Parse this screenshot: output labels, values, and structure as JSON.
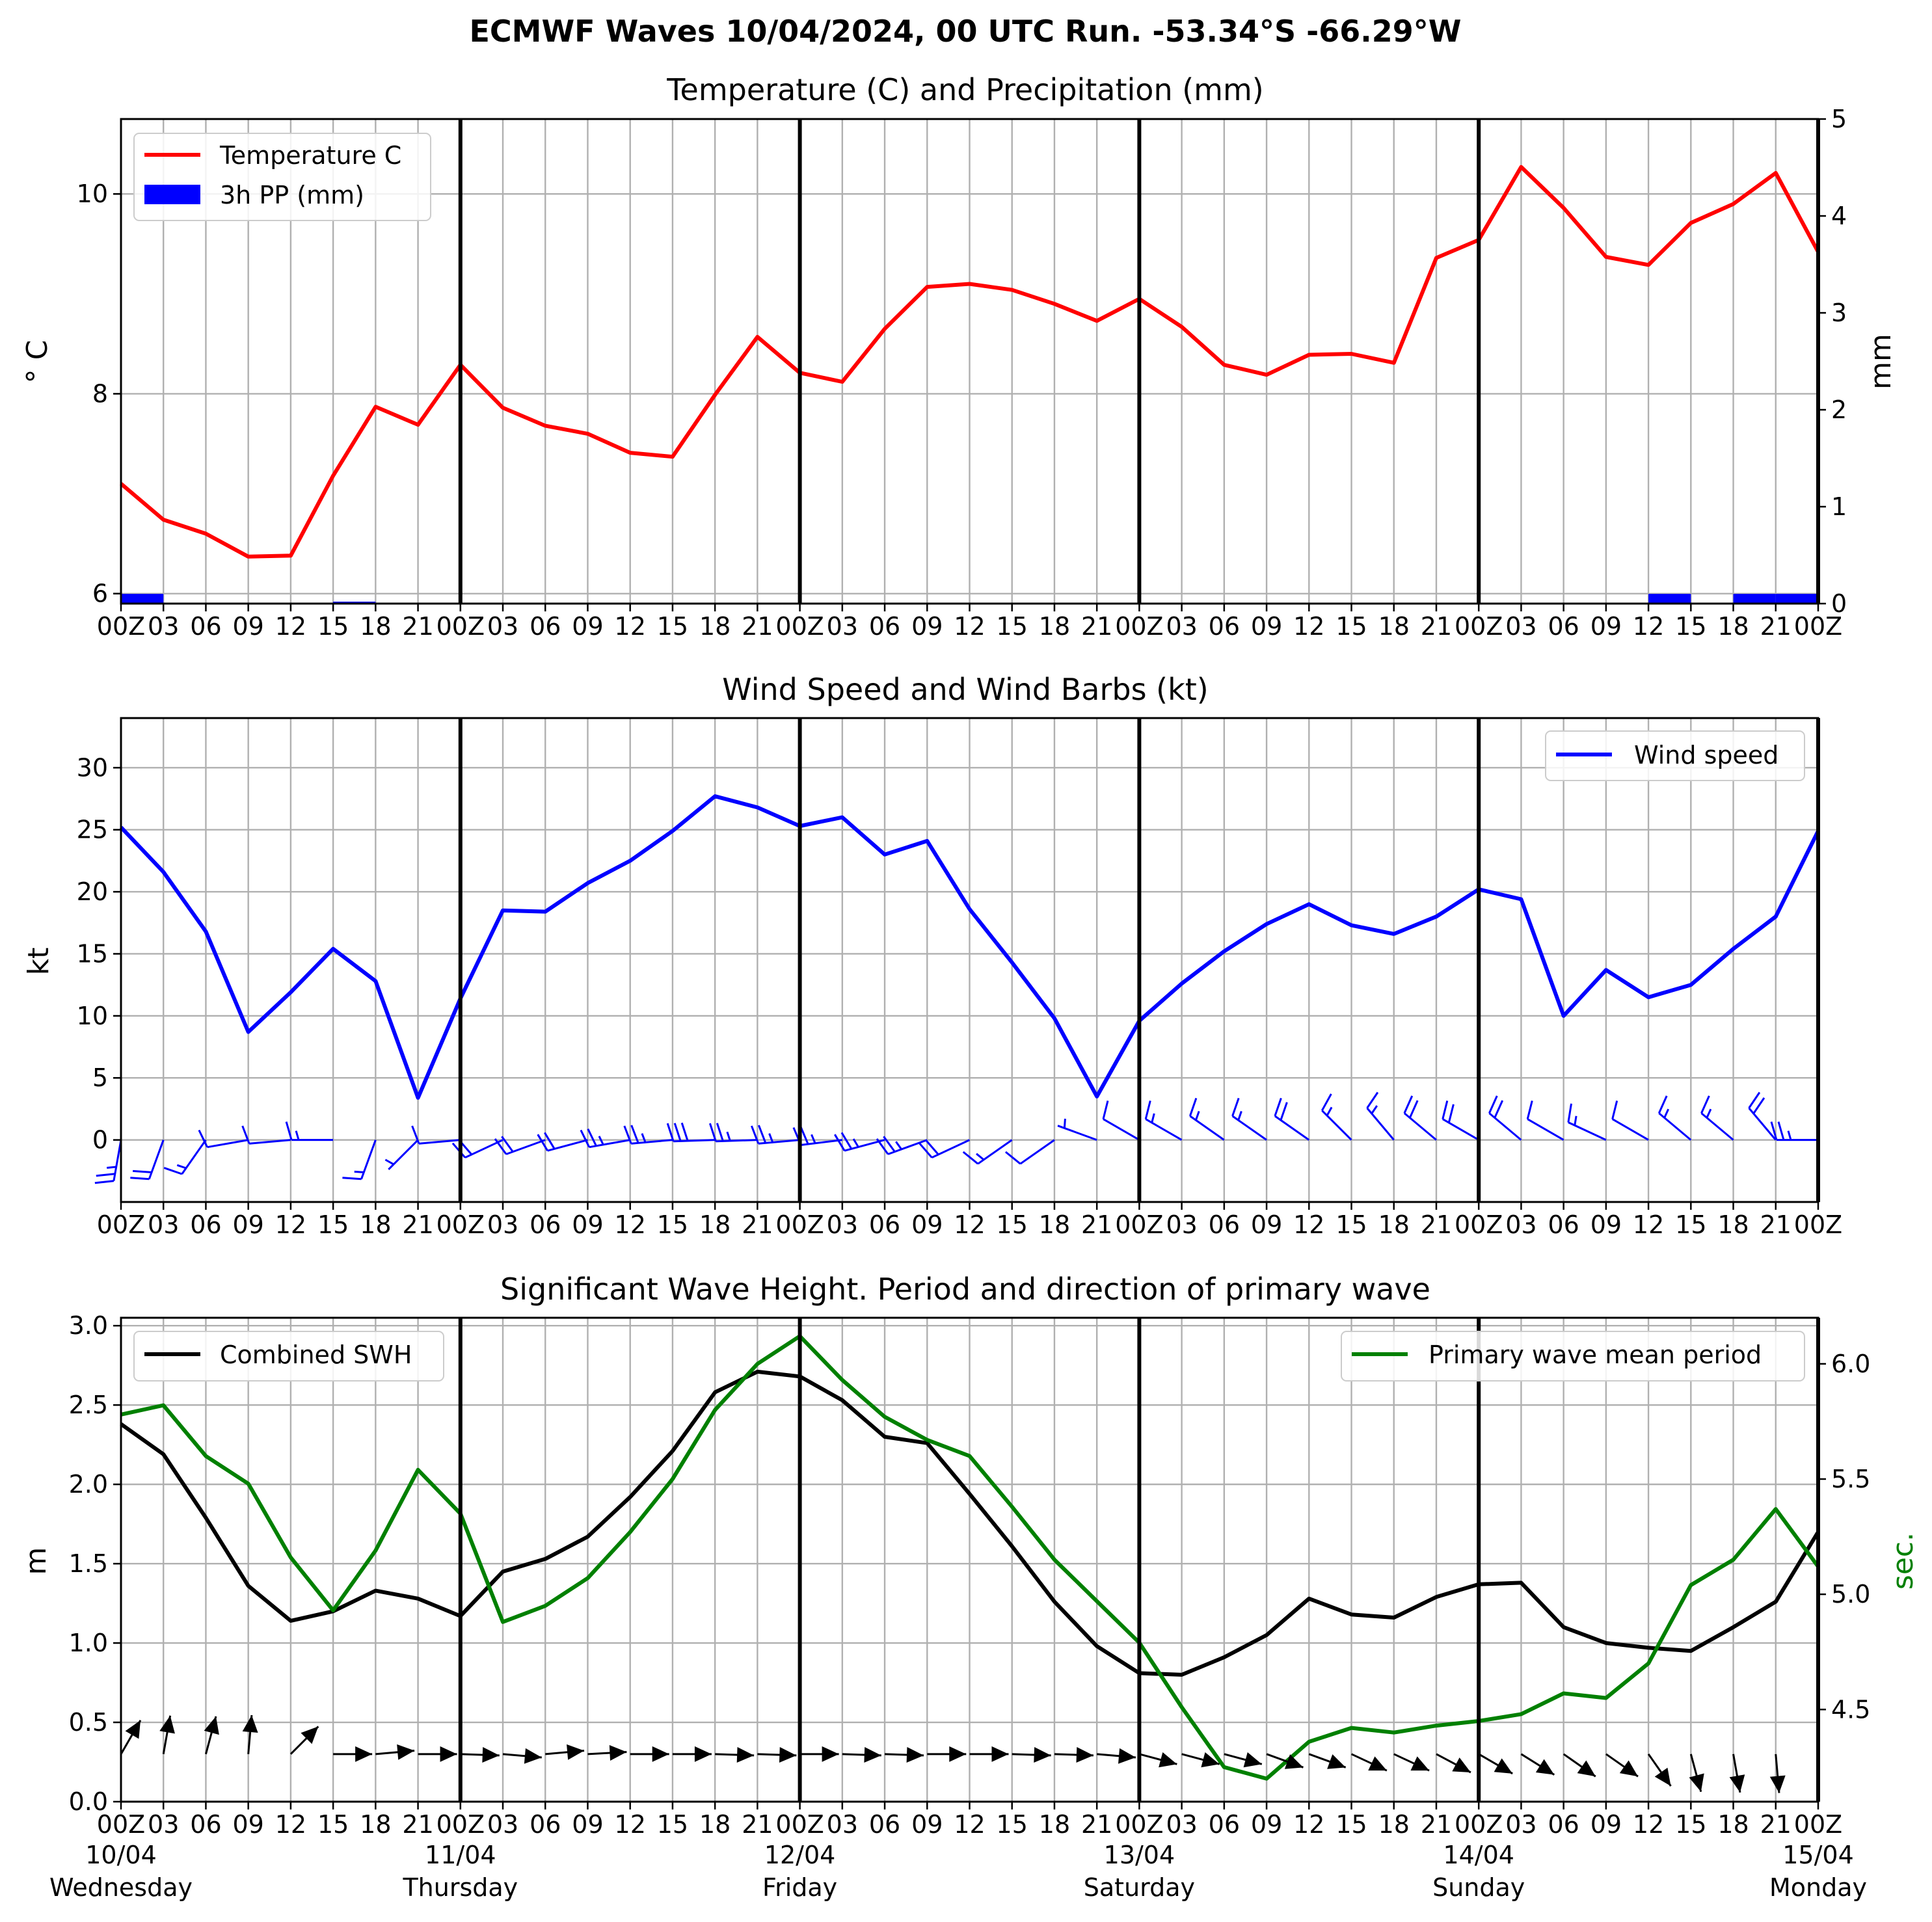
{
  "suptitle": "ECMWF Waves 10/04/2024, 00 UTC Run. -53.34°S -66.29°W",
  "x_hour_labels": [
    "00Z",
    "03",
    "06",
    "09",
    "12",
    "15",
    "18",
    "21",
    "00Z",
    "03",
    "06",
    "09",
    "12",
    "15",
    "18",
    "21",
    "00Z",
    "03",
    "06",
    "09",
    "12",
    "15",
    "18",
    "21",
    "00Z",
    "03",
    "06",
    "09",
    "12",
    "15",
    "18",
    "21",
    "00Z",
    "03",
    "06",
    "09",
    "12",
    "15",
    "18",
    "21",
    "00Z"
  ],
  "day_labels": [
    {
      "date": "10/04",
      "weekday": "Wednesday"
    },
    {
      "date": "11/04",
      "weekday": "Thursday"
    },
    {
      "date": "12/04",
      "weekday": "Friday"
    },
    {
      "date": "13/04",
      "weekday": "Saturday"
    },
    {
      "date": "14/04",
      "weekday": "Sunday"
    },
    {
      "date": "15/04",
      "weekday": "Monday"
    }
  ],
  "chart_data": [
    {
      "type": "line",
      "title": "Temperature (C) and Precipitation (mm)",
      "ylabel": "$^\\circ$C",
      "ylabel_display": "° C",
      "y2label": "mm",
      "ylim": [
        5.9,
        10.75
      ],
      "y2lim": [
        0,
        5
      ],
      "yticks": [
        6,
        8,
        10
      ],
      "y2ticks": [
        0,
        1,
        2,
        3,
        4,
        5
      ],
      "x_hours": [
        0,
        3,
        6,
        9,
        12,
        15,
        18,
        21,
        24,
        27,
        30,
        33,
        36,
        39,
        42,
        45,
        48,
        51,
        54,
        57,
        60,
        63,
        66,
        69,
        72,
        75,
        78,
        81,
        84,
        87,
        90,
        93,
        96,
        99,
        102,
        105,
        108,
        111,
        114,
        117,
        120
      ],
      "legend_loc": "upper left",
      "grid": true,
      "series": [
        {
          "name": "Temperature C",
          "color": "#ff0000",
          "values": [
            7.1,
            6.74,
            6.6,
            6.37,
            6.38,
            7.18,
            7.87,
            7.69,
            8.29,
            7.86,
            7.68,
            7.6,
            7.41,
            7.37,
            7.99,
            8.57,
            8.21,
            8.12,
            8.65,
            9.07,
            9.1,
            9.04,
            8.9,
            8.73,
            8.95,
            8.67,
            8.29,
            8.19,
            8.39,
            8.4,
            8.31,
            9.36,
            9.54,
            10.27,
            9.86,
            9.37,
            9.29,
            9.71,
            9.9,
            10.21,
            9.42
          ]
        },
        {
          "name": "3h PP (mm)",
          "type": "bar",
          "color": "#0000ff",
          "axis": "right",
          "values": [
            0.1,
            0,
            0,
            0,
            0,
            0.02,
            0,
            0,
            0,
            0,
            0,
            0,
            0,
            0,
            0,
            0,
            0,
            0,
            0,
            0,
            0,
            0,
            0,
            0,
            0,
            0,
            0,
            0,
            0,
            0,
            0,
            0,
            0,
            0,
            0,
            0,
            0.1,
            0,
            0.1,
            0.1
          ]
        }
      ]
    },
    {
      "type": "line",
      "title": "Wind Speed and Wind Barbs (kt)",
      "ylabel": "kt",
      "ylim": [
        -5,
        34
      ],
      "yticks": [
        0,
        5,
        10,
        15,
        20,
        25,
        30
      ],
      "x_hours": [
        0,
        3,
        6,
        9,
        12,
        15,
        18,
        21,
        24,
        27,
        30,
        33,
        36,
        39,
        42,
        45,
        48,
        51,
        54,
        57,
        60,
        63,
        66,
        69,
        72,
        75,
        78,
        81,
        84,
        87,
        90,
        93,
        96,
        99,
        102,
        105,
        108,
        111,
        114,
        117,
        120
      ],
      "legend_loc": "upper right",
      "grid": true,
      "series": [
        {
          "name": "Wind speed",
          "color": "#0000ff",
          "values": [
            25.2,
            21.6,
            16.8,
            8.7,
            11.9,
            15.4,
            12.8,
            3.4,
            11.4,
            18.5,
            18.4,
            20.7,
            22.5,
            24.9,
            27.7,
            26.8,
            25.3,
            26.0,
            23.0,
            24.1,
            18.6,
            14.3,
            9.8,
            3.5,
            9.6,
            12.6,
            15.2,
            17.4,
            19.0,
            17.3,
            16.6,
            18.0,
            20.2,
            19.4,
            10.0,
            13.7,
            11.5,
            12.5,
            15.4,
            18.0,
            24.9
          ]
        }
      ],
      "wind_barbs": {
        "speed_kt": [
          25,
          22,
          17,
          9,
          12,
          15,
          13,
          3,
          11,
          19,
          18,
          21,
          23,
          25,
          28,
          27,
          25,
          26,
          23,
          24,
          19,
          14,
          10,
          4,
          10,
          13,
          15,
          17,
          19,
          17,
          17,
          18,
          20,
          19,
          10,
          14,
          12,
          13,
          15,
          18,
          25
        ],
        "direction_deg": [
          190,
          200,
          215,
          260,
          265,
          270,
          200,
          225,
          265,
          245,
          250,
          255,
          260,
          265,
          268,
          268,
          265,
          263,
          255,
          250,
          245,
          235,
          235,
          290,
          300,
          300,
          305,
          305,
          305,
          315,
          320,
          310,
          300,
          310,
          300,
          295,
          300,
          310,
          310,
          320,
          270
        ]
      }
    },
    {
      "type": "line",
      "title": "Significant Wave Height. Period and direction of primary wave",
      "ylabel": "m",
      "y2label": "sec.",
      "ylim": [
        0,
        3.05
      ],
      "y2lim": [
        4.1,
        6.2
      ],
      "yticks": [
        0.0,
        0.5,
        1.0,
        1.5,
        2.0,
        2.5,
        3.0
      ],
      "y2ticks": [
        4.5,
        5.0,
        5.5,
        6.0
      ],
      "x_hours": [
        0,
        3,
        6,
        9,
        12,
        15,
        18,
        21,
        24,
        27,
        30,
        33,
        36,
        39,
        42,
        45,
        48,
        51,
        54,
        57,
        60,
        63,
        66,
        69,
        72,
        75,
        78,
        81,
        84,
        87,
        90,
        93,
        96,
        99,
        102,
        105,
        108,
        111,
        114,
        117,
        120
      ],
      "grid": true,
      "series": [
        {
          "name": "Combined SWH",
          "color": "#000000",
          "legend_loc": "upper left",
          "values": [
            2.38,
            2.19,
            1.79,
            1.36,
            1.14,
            1.2,
            1.33,
            1.28,
            1.17,
            1.45,
            1.53,
            1.67,
            1.92,
            2.21,
            2.58,
            2.71,
            2.68,
            2.53,
            2.3,
            2.26,
            1.94,
            1.61,
            1.26,
            0.98,
            0.81,
            0.8,
            0.91,
            1.05,
            1.28,
            1.18,
            1.16,
            1.29,
            1.37,
            1.38,
            1.1,
            1.0,
            0.97,
            0.95,
            1.1,
            1.26,
            1.7
          ]
        },
        {
          "name": "Primary wave mean period",
          "color": "#008000",
          "axis": "right",
          "legend_loc": "upper right",
          "values": [
            5.78,
            5.82,
            5.6,
            5.48,
            5.16,
            4.93,
            5.19,
            5.54,
            5.35,
            4.88,
            4.95,
            5.07,
            5.27,
            5.5,
            5.8,
            6.0,
            6.12,
            5.93,
            5.77,
            5.67,
            5.6,
            5.38,
            5.15,
            4.97,
            4.79,
            4.51,
            4.25,
            4.2,
            4.36,
            4.42,
            4.4,
            4.43,
            4.45,
            4.48,
            4.57,
            4.55,
            4.7,
            5.04,
            5.15,
            5.37,
            5.12
          ]
        }
      ],
      "wave_direction_arrows": {
        "direction_to_deg": [
          30,
          10,
          15,
          5,
          45,
          90,
          85,
          90,
          92,
          95,
          85,
          87,
          90,
          90,
          92,
          92,
          90,
          92,
          92,
          90,
          90,
          92,
          92,
          95,
          105,
          105,
          105,
          110,
          110,
          115,
          115,
          118,
          120,
          122,
          125,
          125,
          145,
          165,
          170,
          175,
          175
        ]
      }
    }
  ]
}
